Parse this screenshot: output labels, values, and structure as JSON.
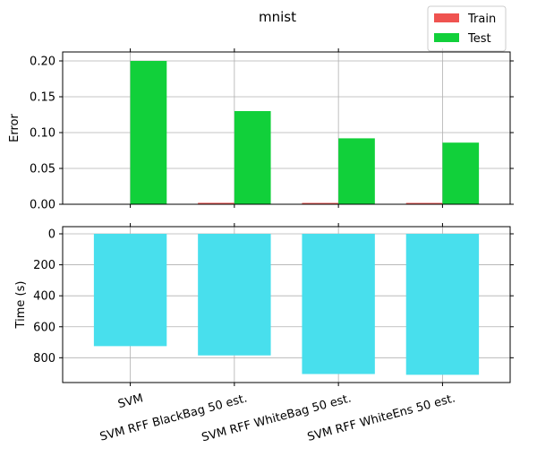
{
  "chart_data": {
    "type": "bar",
    "title": "mnist",
    "categories": [
      "SVM",
      "SVM RFF BlackBag 50 est.",
      "SVM RFF WhiteBag 50 est.",
      "SVM RFF WhiteEns 50 est."
    ],
    "legend": {
      "placement": "top-right",
      "entries": [
        {
          "name": "Train",
          "color": "#ef5350"
        },
        {
          "name": "Test",
          "color": "#11d03a"
        }
      ]
    },
    "panels": [
      {
        "ylabel": "Error",
        "ylim": [
          0,
          0.2
        ],
        "yticks": [
          "0.00",
          "0.05",
          "0.10",
          "0.15",
          "0.20"
        ],
        "ytick_values": [
          0,
          0.05,
          0.1,
          0.15,
          0.2
        ],
        "grid": true,
        "series": [
          {
            "name": "Train",
            "color": "#ef5350",
            "values": [
              0.0,
              0.002,
              0.001,
              0.001
            ]
          },
          {
            "name": "Test",
            "color": "#11d03a",
            "values": [
              0.2,
              0.13,
              0.092,
              0.086
            ]
          }
        ]
      },
      {
        "ylabel": "Time (s)",
        "ylim": [
          0,
          960
        ],
        "inverted": true,
        "yticks": [
          "0",
          "200",
          "400",
          "600",
          "800"
        ],
        "ytick_values": [
          0,
          200,
          400,
          600,
          800
        ],
        "grid": true,
        "series": [
          {
            "color": "#48dfed",
            "values": [
              725,
              785,
              905,
              910
            ]
          }
        ]
      }
    ]
  }
}
